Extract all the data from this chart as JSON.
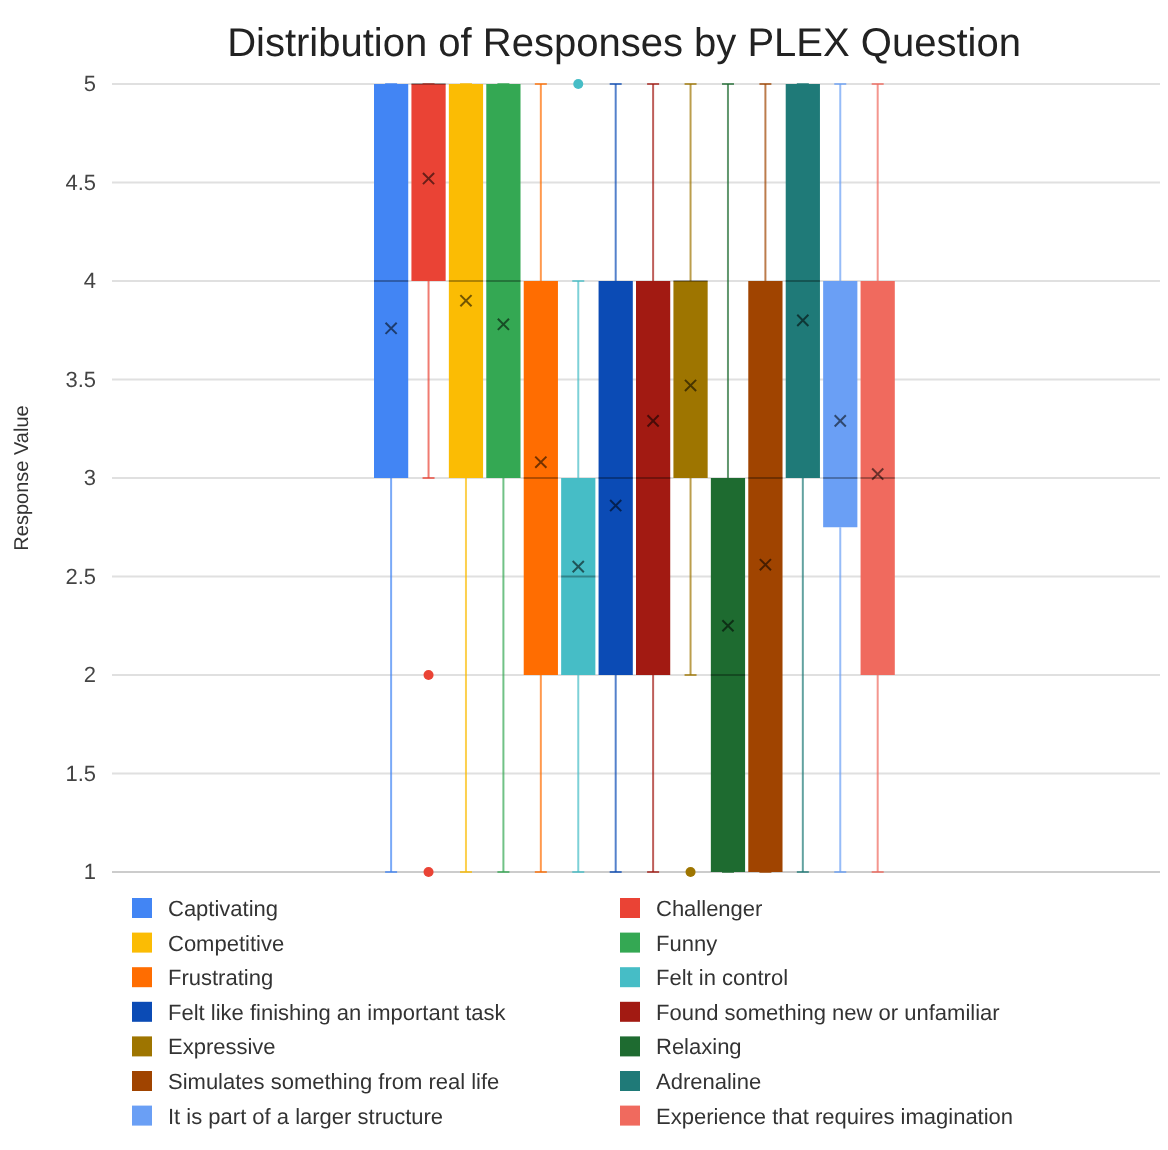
{
  "chart_data": {
    "type": "box",
    "title": "Distribution of Responses by PLEX Question",
    "ylabel": "Response Value",
    "categories": [
      null
    ],
    "ylim": [
      1,
      5
    ],
    "yticks": [
      1,
      1.5,
      2,
      2.5,
      3,
      3.5,
      4,
      4.5,
      5
    ],
    "grid": "y",
    "legend": "bottom",
    "tick_labels": "y",
    "marker": "cross",
    "series": [
      {
        "name": "Captivating",
        "color": "#4285f4",
        "boxes": [
          {
            "low": 1,
            "q1": 3,
            "median": 4,
            "q3": 5,
            "high": 5,
            "mean": 3.76
          }
        ]
      },
      {
        "name": "Challenger",
        "color": "#ea4335",
        "boxes": [
          {
            "low": 3,
            "q1": 4,
            "median": 5,
            "q3": 5,
            "high": 5,
            "mean": 4.52,
            "outliers": [
              2,
              1
            ]
          }
        ]
      },
      {
        "name": "Competitive",
        "color": "#fbbc04",
        "boxes": [
          {
            "low": 1,
            "q1": 3,
            "median": 4,
            "q3": 5,
            "high": 5,
            "mean": 3.9
          }
        ]
      },
      {
        "name": "Funny",
        "color": "#34a853",
        "boxes": [
          {
            "low": 1,
            "q1": 3,
            "median": 4,
            "q3": 5,
            "high": 5,
            "mean": 3.78
          }
        ]
      },
      {
        "name": "Frustrating",
        "color": "#ff6d01",
        "boxes": [
          {
            "low": 1,
            "q1": 2,
            "median": 3,
            "q3": 4,
            "high": 5,
            "mean": 3.08
          }
        ]
      },
      {
        "name": "Felt in control",
        "color": "#46bdc6",
        "boxes": [
          {
            "low": 1,
            "q1": 2,
            "median": 2.5,
            "q3": 3,
            "high": 4,
            "mean": 2.55,
            "outliers": [
              5
            ]
          }
        ]
      },
      {
        "name": "Felt like finishing an important task",
        "color": "#0b4bb5",
        "boxes": [
          {
            "low": 1,
            "q1": 2,
            "median": 3,
            "q3": 4,
            "high": 5,
            "mean": 2.86
          }
        ]
      },
      {
        "name": "Found something new or unfamiliar",
        "color": "#a21a12",
        "boxes": [
          {
            "low": 1,
            "q1": 2,
            "median": 3,
            "q3": 4,
            "high": 5,
            "mean": 3.29
          }
        ]
      },
      {
        "name": "Expressive",
        "color": "#9e7500",
        "boxes": [
          {
            "low": 2,
            "q1": 3,
            "median": 4,
            "q3": 4,
            "high": 5,
            "mean": 3.47,
            "outliers": [
              1
            ]
          }
        ]
      },
      {
        "name": "Relaxing",
        "color": "#1e6b30",
        "boxes": [
          {
            "low": 1,
            "q1": 1,
            "median": 2,
            "q3": 3,
            "high": 5,
            "mean": 2.25
          }
        ]
      },
      {
        "name": "Simulates something from real life",
        "color": "#a04400",
        "boxes": [
          {
            "low": 1,
            "q1": 1,
            "median": 3,
            "q3": 4,
            "high": 5,
            "mean": 2.56
          }
        ]
      },
      {
        "name": "Adrenaline",
        "color": "#1f7a78",
        "boxes": [
          {
            "low": 1,
            "q1": 3,
            "median": 4,
            "q3": 5,
            "high": 5,
            "mean": 3.8
          }
        ]
      },
      {
        "name": "It is part of a larger structure",
        "color": "#6a9ff5",
        "boxes": [
          {
            "low": 1,
            "q1": 2.75,
            "median": 3,
            "q3": 4,
            "high": 5,
            "mean": 3.29
          }
        ]
      },
      {
        "name": "Experience that requires imagination",
        "color": "#f06a5e",
        "boxes": [
          {
            "low": 1,
            "q1": 2,
            "median": 3,
            "q3": 4,
            "high": 5,
            "mean": 3.02
          }
        ]
      }
    ]
  }
}
